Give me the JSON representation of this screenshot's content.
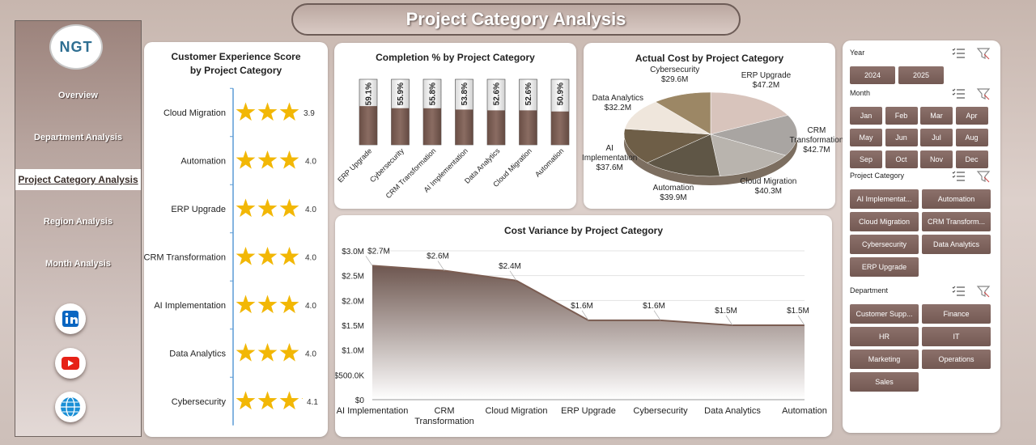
{
  "title": "Project Category Analysis",
  "logo": "NGT",
  "nav": {
    "items": [
      "Overview",
      "Department Analysis",
      "Project Category Analysis",
      "Region Analysis",
      "Month Analysis"
    ],
    "active": 2
  },
  "slicers": [
    {
      "title": "Year",
      "items": [
        "2024",
        "2025"
      ]
    },
    {
      "title": "Month",
      "items": [
        "Jan",
        "Feb",
        "Mar",
        "Apr",
        "May",
        "Jun",
        "Jul",
        "Aug",
        "Sep",
        "Oct",
        "Nov",
        "Dec"
      ]
    },
    {
      "title": "Project Category",
      "items": [
        "AI Implementat...",
        "Automation",
        "Cloud Migration",
        "CRM Transform...",
        "Cybersecurity",
        "Data Analytics",
        "ERP Upgrade"
      ]
    },
    {
      "title": "Department",
      "items": [
        "Customer Supp...",
        "Finance",
        "HR",
        "IT",
        "Marketing",
        "Operations",
        "Sales"
      ]
    }
  ],
  "chart_data": [
    {
      "type": "star-bar",
      "title": "Customer Experience Score by Project Category",
      "categories": [
        "Cloud Migration",
        "Automation",
        "ERP Upgrade",
        "CRM Transformation",
        "AI Implementation",
        "Data Analytics",
        "Cybersecurity"
      ],
      "values": [
        3.9,
        4.0,
        4.0,
        4.0,
        4.0,
        4.0,
        4.1
      ],
      "value_labels": [
        "3.9",
        "4.0",
        "4.0",
        "4.0",
        "4.0",
        "4.0",
        "4.1"
      ],
      "color": "#f2b705"
    },
    {
      "type": "column",
      "title": "Completion % by Project Category",
      "categories": [
        "ERP Upgrade",
        "Cybersecurity",
        "CRM Transformation",
        "AI Implementation",
        "Data Analytics",
        "Cloud Migration",
        "Automation"
      ],
      "values": [
        59.1,
        55.9,
        55.8,
        53.8,
        52.6,
        52.6,
        50.9
      ],
      "value_labels": [
        "59.1%",
        "55.9%",
        "55.8%",
        "53.8%",
        "52.6%",
        "52.6%",
        "50.9%"
      ],
      "ylim": [
        0,
        100
      ],
      "color": "#7b5d52"
    },
    {
      "type": "pie",
      "title": "Actual Cost by Project Category",
      "categories": [
        "ERP Upgrade",
        "CRM Transformation",
        "Cloud Migration",
        "Automation",
        "AI Implementation",
        "Data Analytics",
        "Cybersecurity"
      ],
      "values": [
        47.2,
        42.7,
        40.3,
        39.9,
        37.6,
        32.2,
        29.6
      ],
      "value_labels": [
        "$47.2M",
        "$42.7M",
        "$40.3M",
        "$39.9M",
        "$37.6M",
        "$32.2M",
        "$29.6M"
      ],
      "colors": [
        "#d8c4bc",
        "#a9a5a2",
        "#b9b4ae",
        "#5f5646",
        "#6e5e47",
        "#efe6dc",
        "#9c8765"
      ]
    },
    {
      "type": "area",
      "title": "Cost Variance by Project Category",
      "categories": [
        "AI Implementation",
        "CRM Transformation",
        "Cloud Migration",
        "ERP Upgrade",
        "Cybersecurity",
        "Data Analytics",
        "Automation"
      ],
      "values": [
        2700000,
        2600000,
        2400000,
        1600000,
        1600000,
        1500000,
        1500000
      ],
      "value_labels": [
        "$2.7M",
        "$2.6M",
        "$2.4M",
        "$1.6M",
        "$1.6M",
        "$1.5M",
        "$1.5M"
      ],
      "ylim": [
        0,
        3000000
      ],
      "yticks": [
        {
          "value": 0,
          "label": "$0"
        },
        {
          "value": 500000,
          "label": "$500.0K"
        },
        {
          "value": 1000000,
          "label": "$1.0M"
        },
        {
          "value": 1500000,
          "label": "$1.5M"
        },
        {
          "value": 2000000,
          "label": "$2.0M"
        },
        {
          "value": 2500000,
          "label": "$2.5M"
        },
        {
          "value": 3000000,
          "label": "$3.0M"
        }
      ],
      "grid": true,
      "color": "#7b5d52"
    }
  ]
}
